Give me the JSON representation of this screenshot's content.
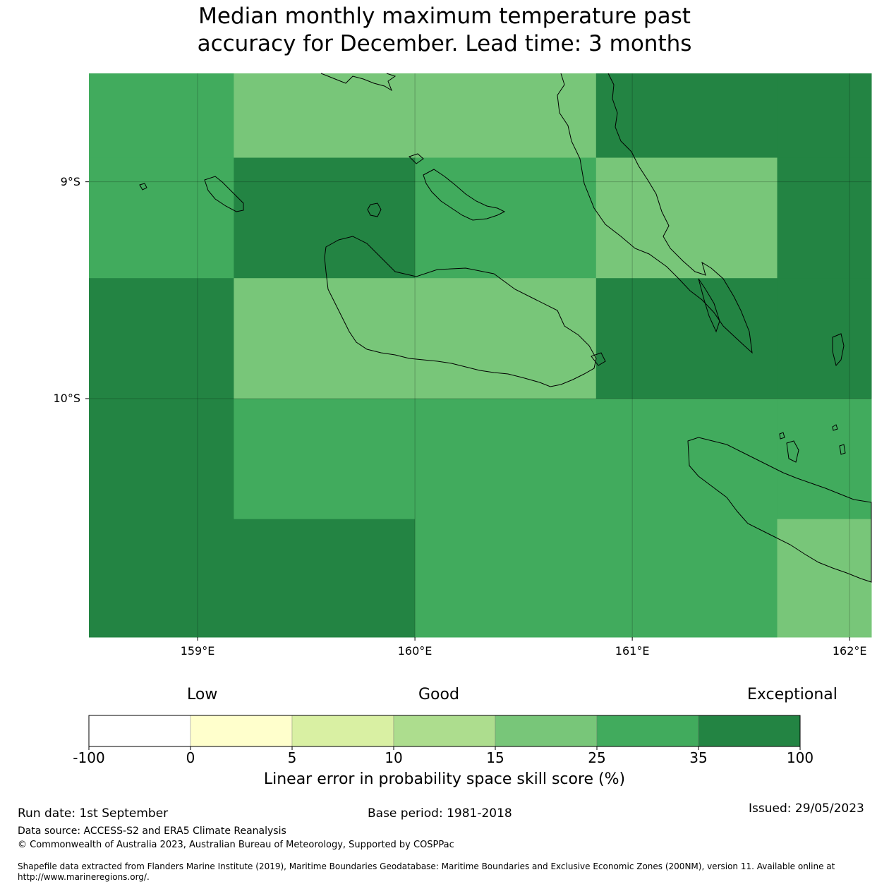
{
  "title_line1": "Median monthly maximum temperature past",
  "title_line2": "accuracy for December. Lead time: 3 months",
  "map": {
    "lon_range": [
      158.5,
      162.1
    ],
    "lat_range": [
      -8.5,
      -11.1
    ],
    "lon_ticks": [
      {
        "value": 159,
        "label": "159°E"
      },
      {
        "value": 160,
        "label": "160°E"
      },
      {
        "value": 161,
        "label": "161°E"
      },
      {
        "value": 162,
        "label": "162°E"
      }
    ],
    "lat_ticks": [
      {
        "value": -9,
        "label": "9°S"
      },
      {
        "value": -10,
        "label": "10°S"
      }
    ],
    "cell_bounds": {
      "lon": [
        158.5,
        159.1667,
        160.0,
        160.8333,
        161.6667,
        162.1
      ],
      "lat": [
        -8.5,
        -8.8889,
        -9.4444,
        -10.0,
        -10.5556,
        -11.1
      ]
    },
    "cell_classes": [
      [
        5,
        4,
        4,
        6,
        6
      ],
      [
        5,
        6,
        5,
        4,
        6
      ],
      [
        6,
        4,
        4,
        6,
        6
      ],
      [
        6,
        5,
        5,
        5,
        5
      ],
      [
        6,
        6,
        5,
        5,
        4
      ]
    ]
  },
  "colorbar": {
    "bins": [
      {
        "from": "-100",
        "to": "0",
        "color": "#ffffff"
      },
      {
        "from": "0",
        "to": "5",
        "color": "#ffffcc"
      },
      {
        "from": "5",
        "to": "10",
        "color": "#d9f0a3"
      },
      {
        "from": "10",
        "to": "15",
        "color": "#addd8e"
      },
      {
        "from": "15",
        "to": "25",
        "color": "#78c679"
      },
      {
        "from": "25",
        "to": "35",
        "color": "#41ab5d"
      },
      {
        "from": "35",
        "to": "100",
        "color": "#238443"
      }
    ],
    "tick_labels": [
      "-100",
      "0",
      "5",
      "10",
      "15",
      "25",
      "35",
      "100"
    ],
    "categories": {
      "low": "Low",
      "good": "Good",
      "exceptional": "Exceptional"
    },
    "label": "Linear error in probability space skill score (%)"
  },
  "footer": {
    "run_date": "Run date: 1st September",
    "base_period": "Base period: 1981-2018",
    "issued": "Issued: 29/05/2023",
    "data_source": "Data source: ACCESS-S2 and ERA5 Climate Reanalysis",
    "copyright": "© Commonwealth of Australia 2023, Australian Bureau of Meteorology, Supported by COSPPac",
    "shapefile_line1": "Shapefile data extracted from Flanders Marine Institute (2019), Maritime Boundaries Geodatabase: Maritime Boundaries and Exclusive Economic Zones (200NM), version 11. Available online at",
    "shapefile_line2": "http://www.marineregions.org/."
  }
}
